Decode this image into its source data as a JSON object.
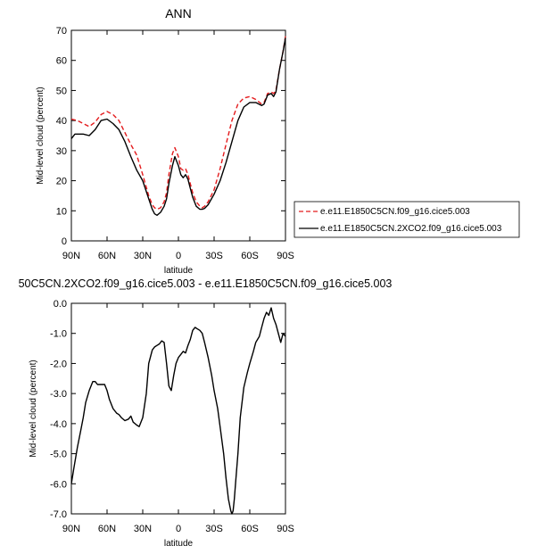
{
  "chart_data": [
    {
      "type": "line",
      "title": "ANN",
      "xlabel": "latitude",
      "ylabel": "Mid-level cloud (percent)",
      "xlim": [
        90,
        -90
      ],
      "ylim": [
        0,
        70
      ],
      "x_ticks": [
        90,
        60,
        30,
        0,
        -30,
        -60,
        -90
      ],
      "x_tick_labels": [
        "90N",
        "60N",
        "30N",
        "0",
        "30S",
        "60S",
        "90S"
      ],
      "y_ticks": [
        0,
        10,
        20,
        30,
        40,
        50,
        60,
        70
      ],
      "y_tick_labels": [
        "0",
        "10",
        "20",
        "30",
        "40",
        "50",
        "60",
        "70"
      ],
      "legend_position": "right",
      "series": [
        {
          "name": "e.e11.E1850C5CN.f09_g16.cice5.003",
          "color": "#e41a1c",
          "dash": "dashed",
          "x": [
            90,
            85,
            80,
            75,
            70,
            65,
            60,
            55,
            50,
            45,
            40,
            35,
            30,
            25,
            22,
            20,
            18,
            15,
            12,
            10,
            8,
            5,
            3,
            0,
            -2,
            -4,
            -6,
            -8,
            -10,
            -12,
            -15,
            -18,
            -20,
            -22,
            -25,
            -30,
            -35,
            -40,
            -45,
            -50,
            -55,
            -60,
            -65,
            -70,
            -72,
            -75,
            -78,
            -80,
            -82,
            -85,
            -88,
            -90
          ],
          "y": [
            40.5,
            40,
            39,
            38,
            39.5,
            42,
            43,
            42,
            40,
            36,
            32,
            28.5,
            22,
            15,
            12,
            11,
            10.5,
            11,
            13,
            16,
            22,
            29,
            31,
            28,
            24,
            23.5,
            24,
            22,
            19,
            16,
            13,
            11.5,
            11,
            11.5,
            13,
            17,
            24,
            32,
            40,
            45.5,
            47.5,
            48,
            47,
            45.5,
            46,
            49,
            49.5,
            49,
            50,
            57,
            63,
            68
          ]
        },
        {
          "name": "e.e11.E1850C5CN.2XCO2.f09_g16.cice5.003",
          "color": "#000000",
          "dash": "solid",
          "x": [
            90,
            87,
            85,
            80,
            75,
            70,
            65,
            60,
            55,
            50,
            45,
            40,
            35,
            30,
            25,
            22,
            20,
            18,
            15,
            12,
            10,
            8,
            5,
            3,
            0,
            -2,
            -4,
            -6,
            -8,
            -10,
            -12,
            -15,
            -18,
            -20,
            -22,
            -25,
            -30,
            -35,
            -40,
            -45,
            -50,
            -55,
            -60,
            -65,
            -70,
            -72,
            -75,
            -78,
            -80,
            -82,
            -85,
            -88,
            -90
          ],
          "y": [
            34,
            35.5,
            35.5,
            35.5,
            35,
            37,
            40,
            40.5,
            39,
            37,
            33,
            28,
            23.5,
            20,
            14,
            10.5,
            9,
            8.5,
            9.5,
            11.5,
            14,
            19,
            25,
            28,
            25,
            22,
            21,
            22,
            20.5,
            17.5,
            14.5,
            11.5,
            10.5,
            10.5,
            10.8,
            12,
            15.5,
            20,
            26,
            33,
            40,
            44.5,
            46,
            46,
            45,
            45.5,
            48.5,
            49,
            48,
            49.5,
            57,
            63,
            67.5
          ]
        }
      ]
    },
    {
      "type": "line",
      "title": "50C5CN.2XCO2.f09_g16.cice5.003 - e.e11.E1850C5CN.f09_g16.cice5.003",
      "xlabel": "latitude",
      "ylabel": "Mid-level cloud (percent)",
      "xlim": [
        90,
        -90
      ],
      "ylim": [
        -7.0,
        0.0
      ],
      "x_ticks": [
        90,
        60,
        30,
        0,
        -30,
        -60,
        -90
      ],
      "x_tick_labels": [
        "90N",
        "60N",
        "30N",
        "0",
        "30S",
        "60S",
        "90S"
      ],
      "y_ticks": [
        0,
        -1,
        -2,
        -3,
        -4,
        -5,
        -6,
        -7
      ],
      "y_tick_labels": [
        "0.0",
        "-1.0",
        "-2.0",
        "-3.0",
        "-4.0",
        "-5.0",
        "-6.0",
        "-7.0"
      ],
      "series": [
        {
          "color": "#000000",
          "dash": "solid",
          "x": [
            90,
            88,
            85,
            82,
            80,
            78,
            75,
            72,
            70,
            68,
            65,
            62,
            60,
            58,
            55,
            52,
            50,
            48,
            45,
            42,
            40,
            38,
            35,
            33,
            30,
            27,
            25,
            22,
            20,
            18,
            16,
            14,
            12,
            10,
            8,
            6,
            4,
            2,
            0,
            -2,
            -4,
            -6,
            -8,
            -10,
            -12,
            -14,
            -16,
            -18,
            -20,
            -22,
            -25,
            -28,
            -30,
            -33,
            -35,
            -38,
            -40,
            -42,
            -44,
            -45,
            -46,
            -47,
            -48,
            -50,
            -52,
            -55,
            -58,
            -60,
            -63,
            -65,
            -68,
            -70,
            -72,
            -74,
            -76,
            -78,
            -80,
            -82,
            -84,
            -86,
            -88,
            -90
          ],
          "y": [
            -6.0,
            -5.5,
            -4.8,
            -4.2,
            -3.8,
            -3.3,
            -2.9,
            -2.6,
            -2.6,
            -2.7,
            -2.7,
            -2.7,
            -2.9,
            -3.2,
            -3.5,
            -3.65,
            -3.7,
            -3.8,
            -3.9,
            -3.85,
            -3.75,
            -3.95,
            -4.05,
            -4.1,
            -3.8,
            -3.0,
            -2.0,
            -1.55,
            -1.45,
            -1.4,
            -1.35,
            -1.25,
            -1.3,
            -2.0,
            -2.75,
            -2.9,
            -2.4,
            -2.0,
            -1.8,
            -1.7,
            -1.6,
            -1.65,
            -1.4,
            -1.2,
            -0.9,
            -0.8,
            -0.85,
            -0.9,
            -1.0,
            -1.3,
            -1.8,
            -2.4,
            -2.9,
            -3.5,
            -4.1,
            -5.0,
            -5.8,
            -6.5,
            -6.9,
            -7.0,
            -6.9,
            -6.5,
            -6.0,
            -5.0,
            -3.8,
            -2.8,
            -2.3,
            -2.0,
            -1.6,
            -1.3,
            -1.1,
            -0.8,
            -0.5,
            -0.3,
            -0.4,
            -0.15,
            -0.5,
            -0.7,
            -1.0,
            -1.3,
            -1.0,
            -1.1
          ]
        }
      ]
    }
  ]
}
